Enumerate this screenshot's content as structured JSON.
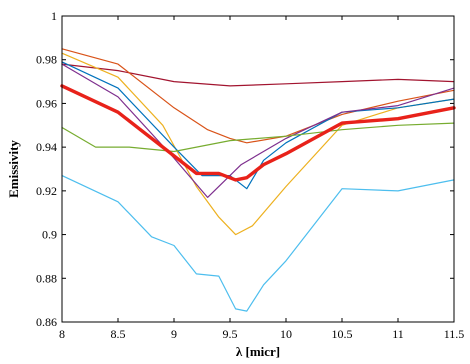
{
  "chart_data": {
    "type": "line",
    "title": "",
    "xlabel": "λ [micr]",
    "ylabel": "Emissivity",
    "xlim": [
      8,
      11.5
    ],
    "ylim": [
      0.86,
      1
    ],
    "xticks": [
      8,
      8.5,
      9,
      9.5,
      10,
      10.5,
      11,
      11.5
    ],
    "yticks": [
      0.86,
      0.88,
      0.9,
      0.92,
      0.94,
      0.96,
      0.98,
      1
    ],
    "xtick_labels": [
      "8",
      "8.5",
      "9",
      "9.5",
      "10",
      "10.5",
      "11",
      "11.5"
    ],
    "ytick_labels": [
      "0.86",
      "0.88",
      "0.9",
      "0.92",
      "0.94",
      "0.96",
      "0.98",
      "1"
    ],
    "grid": false,
    "series": [
      {
        "color": "#A2142F",
        "line_width": 1.2,
        "x": [
          8,
          8.5,
          9,
          9.5,
          10,
          10.5,
          11,
          11.5
        ],
        "y": [
          0.978,
          0.975,
          0.97,
          0.968,
          0.969,
          0.97,
          0.971,
          0.97
        ]
      },
      {
        "color": "#D95319",
        "line_width": 1.2,
        "x": [
          8,
          8.5,
          9,
          9.3,
          9.5,
          9.65,
          10,
          10.5,
          11,
          11.5
        ],
        "y": [
          0.985,
          0.978,
          0.958,
          0.948,
          0.944,
          0.942,
          0.945,
          0.955,
          0.961,
          0.966
        ]
      },
      {
        "color": "#EDB120",
        "line_width": 1.2,
        "x": [
          8,
          8.5,
          8.9,
          9.2,
          9.4,
          9.55,
          9.7,
          10,
          10.5,
          11,
          11.5
        ],
        "y": [
          0.983,
          0.972,
          0.95,
          0.922,
          0.908,
          0.9,
          0.904,
          0.922,
          0.95,
          0.958,
          0.962
        ]
      },
      {
        "color": "#0072BD",
        "line_width": 1.2,
        "x": [
          8,
          8.5,
          9,
          9.25,
          9.5,
          9.65,
          9.8,
          10,
          10.5,
          11,
          11.5
        ],
        "y": [
          0.979,
          0.967,
          0.94,
          0.927,
          0.927,
          0.921,
          0.934,
          0.942,
          0.956,
          0.958,
          0.962
        ]
      },
      {
        "color": "#7E2F8E",
        "line_width": 1.2,
        "x": [
          8,
          8.5,
          9,
          9.3,
          9.6,
          10,
          10.5,
          11,
          11.5
        ],
        "y": [
          0.978,
          0.963,
          0.935,
          0.917,
          0.932,
          0.944,
          0.956,
          0.959,
          0.967
        ]
      },
      {
        "color": "#77AC30",
        "line_width": 1.2,
        "x": [
          8,
          8.3,
          8.6,
          9,
          9.5,
          10,
          10.5,
          11,
          11.5
        ],
        "y": [
          0.949,
          0.94,
          0.94,
          0.938,
          0.943,
          0.945,
          0.948,
          0.95,
          0.951
        ]
      },
      {
        "color": "#4DBEEE",
        "line_width": 1.2,
        "x": [
          8,
          8.5,
          8.8,
          9,
          9.2,
          9.4,
          9.55,
          9.65,
          9.8,
          10,
          10.5,
          11,
          11.5
        ],
        "y": [
          0.927,
          0.915,
          0.899,
          0.895,
          0.882,
          0.881,
          0.866,
          0.865,
          0.877,
          0.888,
          0.921,
          0.92,
          0.925
        ]
      },
      {
        "color": "#E8221A",
        "line_width": 3.4,
        "x": [
          8,
          8.5,
          8.8,
          9,
          9.2,
          9.4,
          9.55,
          9.65,
          9.8,
          10,
          10.5,
          11,
          11.5
        ],
        "y": [
          0.968,
          0.956,
          0.944,
          0.936,
          0.928,
          0.928,
          0.925,
          0.926,
          0.932,
          0.937,
          0.951,
          0.953,
          0.958
        ]
      }
    ]
  }
}
